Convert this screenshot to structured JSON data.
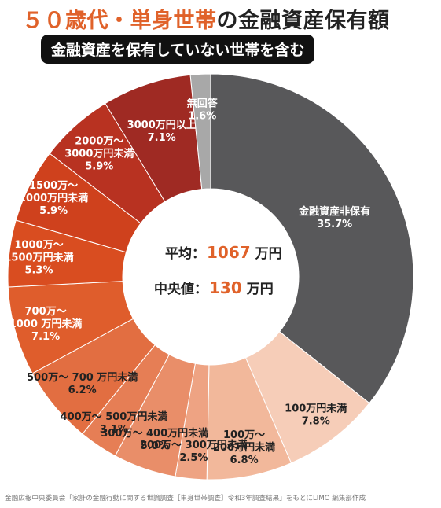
{
  "title": {
    "highlight": "５０歳代・単身世帯",
    "rest": "の金融資産保有額"
  },
  "badge": "金融資産を保有していない世帯を含む",
  "center": {
    "avg_label": "平均：",
    "avg_value": "1067",
    "avg_unit": "万円",
    "median_label": "中央値：",
    "median_value": "130",
    "median_unit": "万円"
  },
  "source": "金融広報中央委員会「家計の金融行動に関する世論調査［単身世帯調査］令和3年調査結果」をもとにLIMO 編集部作成",
  "colors": {
    "accent": "#e0622a",
    "no_assets": "#58585a",
    "no_answer": "#a8a8a8"
  },
  "chart_data": {
    "type": "pie",
    "title": "５０歳代・単身世帯の金融資産保有額",
    "unit": "%",
    "slices": [
      {
        "id": "no-assets",
        "lines": [
          "金融資産非保有",
          "35.7%"
        ],
        "value": 35.7,
        "color": "#58585a",
        "text_color": "#ffffff"
      },
      {
        "id": "under-100",
        "lines": [
          "100万円未満",
          "7.8%"
        ],
        "value": 7.8,
        "color": "#f6cdb8",
        "text_color": "#222222"
      },
      {
        "id": "100-200",
        "lines": [
          "100万～",
          "200万円未満",
          "6.8%"
        ],
        "value": 6.8,
        "color": "#f2b89b",
        "text_color": "#222222"
      },
      {
        "id": "200-300",
        "lines": [
          "200万～ 300万円未満",
          "2.5%"
        ],
        "value": 2.5,
        "color": "#eea383",
        "text_color": "#222222"
      },
      {
        "id": "300-400",
        "lines": [
          "300万～ 400万円未満",
          "5.0%"
        ],
        "value": 5.0,
        "color": "#e98e69",
        "text_color": "#222222"
      },
      {
        "id": "400-500",
        "lines": [
          "400万～ 500万円未満",
          "3.1%"
        ],
        "value": 3.1,
        "color": "#e67e55",
        "text_color": "#222222"
      },
      {
        "id": "500-700",
        "lines": [
          "500万～ 700 万円未満",
          "6.2%"
        ],
        "value": 6.2,
        "color": "#e26e41",
        "text_color": "#222222"
      },
      {
        "id": "700-1000",
        "lines": [
          "700万～",
          "1000 万円未満",
          "7.1%"
        ],
        "value": 7.1,
        "color": "#df5d2c",
        "text_color": "#ffffff"
      },
      {
        "id": "1000-1500",
        "lines": [
          "1000万～",
          "1500万円未満",
          "5.3%"
        ],
        "value": 5.3,
        "color": "#d94d20",
        "text_color": "#ffffff"
      },
      {
        "id": "1500-2000",
        "lines": [
          "1500万～",
          "2000万円未満",
          "5.9%"
        ],
        "value": 5.9,
        "color": "#cf411d",
        "text_color": "#ffffff"
      },
      {
        "id": "2000-3000",
        "lines": [
          "2000万～",
          "3000万円未満",
          "5.9%"
        ],
        "value": 5.9,
        "color": "#b83221",
        "text_color": "#ffffff"
      },
      {
        "id": "3000-plus",
        "lines": [
          "3000万円以上",
          "7.1%"
        ],
        "value": 7.1,
        "color": "#9f2a23",
        "text_color": "#ffffff"
      },
      {
        "id": "no-answer",
        "lines": [
          "無回答",
          "1.6%"
        ],
        "value": 1.6,
        "color": "#a8a8a8",
        "text_color": "#ffffff"
      }
    ]
  }
}
